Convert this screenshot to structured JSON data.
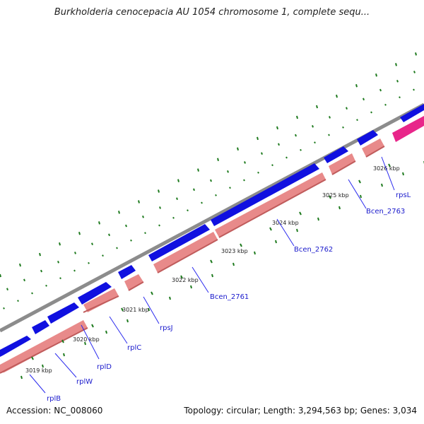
{
  "title": "Burkholderia cenocepacia AU 1054 chromosome 1, complete sequ...",
  "accession": "Accession: NC_008060",
  "summary": "Topology: circular; Length: 3,294,563 bp; Genes: 3,034",
  "colors": {
    "backbone": "#8c8c8c",
    "forward_cds": "#1010e0",
    "reverse_feature": "#e88a8a",
    "highlight_feature": "#e8268a",
    "gene_label": "#1a1acc",
    "tick": "#1e7a1e",
    "leader": "#2a2aee"
  },
  "ticks": [
    "3019 kbp",
    "3020 kbp",
    "3021 kbp",
    "3022 kbp",
    "3023 kbp",
    "3024 kbp",
    "3025 kbp",
    "3026 kbp"
  ],
  "genes": [
    "rplB",
    "rplW",
    "rplD",
    "rplC",
    "rpsJ",
    "Bcen_2761",
    "Bcen_2762",
    "Bcen_2763",
    "rpsL"
  ]
}
